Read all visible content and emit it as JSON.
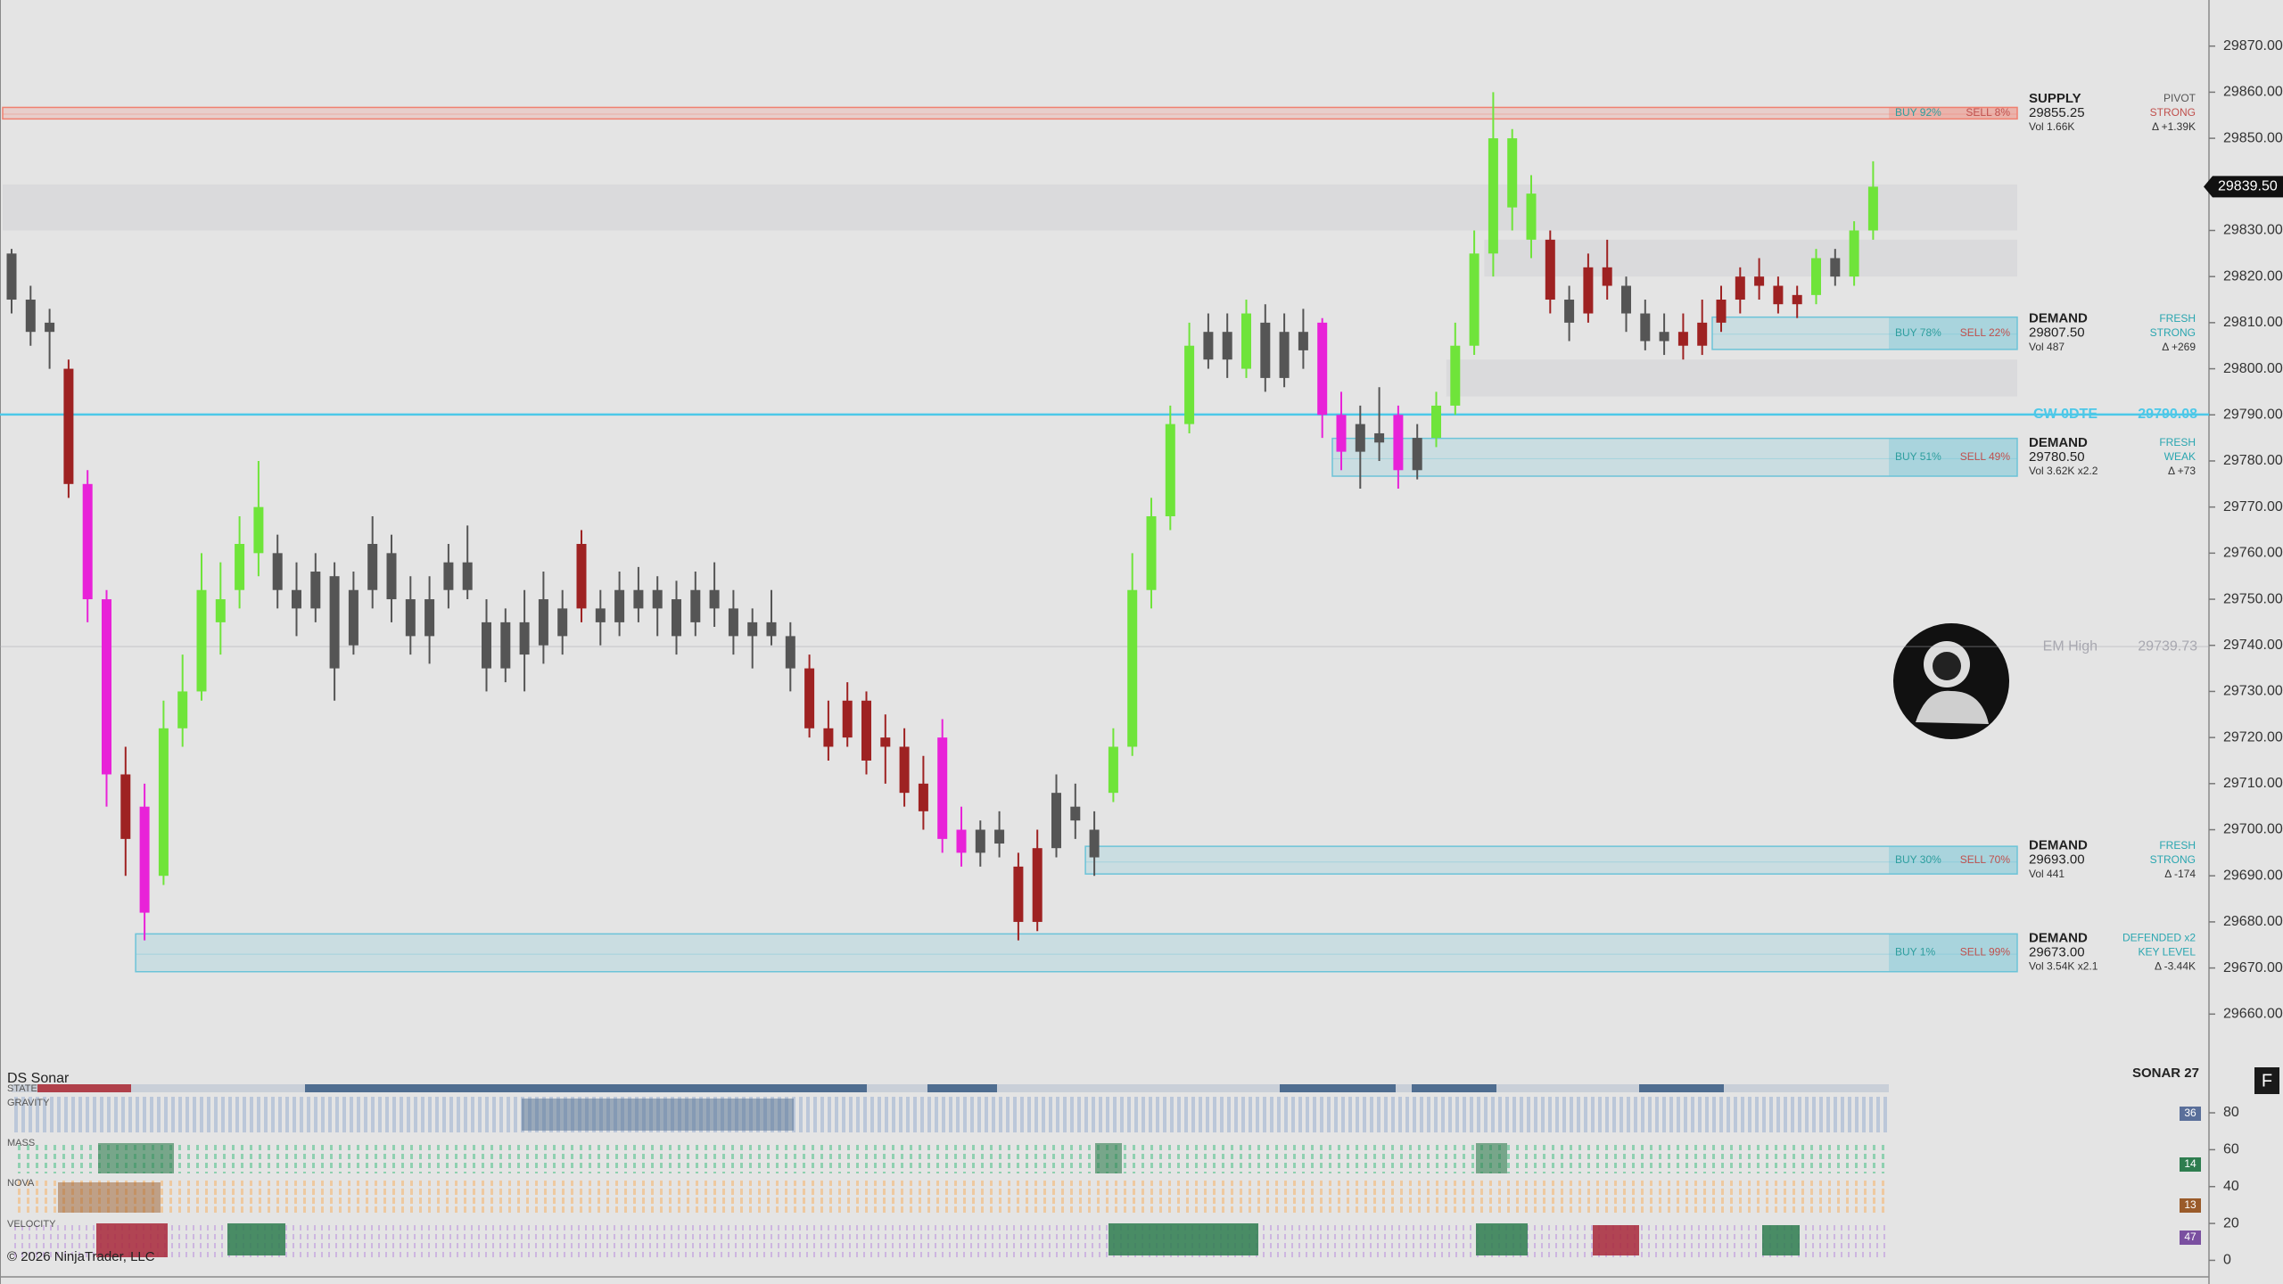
{
  "chart_data": {
    "type": "candlestick",
    "ylim": [
      29650,
      29880
    ],
    "yticks": [
      {
        "value": 29660,
        "label": "29660.00"
      },
      {
        "value": 29670,
        "label": "29670.00"
      },
      {
        "value": 29680,
        "label": "29680.00"
      },
      {
        "value": 29690,
        "label": "29690.00"
      },
      {
        "value": 29700,
        "label": "29700.00"
      },
      {
        "value": 29710,
        "label": "29710.00"
      },
      {
        "value": 29720,
        "label": "29720.00"
      },
      {
        "value": 29730,
        "label": "29730.00"
      },
      {
        "value": 29740,
        "label": "29740.00"
      },
      {
        "value": 29750,
        "label": "29750.00"
      },
      {
        "value": 29760,
        "label": "29760.00"
      },
      {
        "value": 29770,
        "label": "29770.00"
      },
      {
        "value": 29780,
        "label": "29780.00"
      },
      {
        "value": 29790,
        "label": "29790.00"
      },
      {
        "value": 29800,
        "label": "29800.00"
      },
      {
        "value": 29810,
        "label": "29810.00"
      },
      {
        "value": 29820,
        "label": "29820.00"
      },
      {
        "value": 29830,
        "label": "29830.00"
      },
      {
        "value": 29840,
        "label": "29840.00"
      },
      {
        "value": 29850,
        "label": "29850.00"
      },
      {
        "value": 29860,
        "label": "29860.00"
      },
      {
        "value": 29870,
        "label": "29870.00"
      }
    ],
    "candles": [
      [
        29825,
        29826,
        29812,
        29815
      ],
      [
        29815,
        29818,
        29805,
        29808
      ],
      [
        29808,
        29813,
        29800,
        29810
      ],
      [
        29800,
        29802,
        29772,
        29775
      ],
      [
        29775,
        29778,
        29745,
        29750
      ],
      [
        29750,
        29752,
        29705,
        29712
      ],
      [
        29712,
        29718,
        29690,
        29698
      ],
      [
        29705,
        29710,
        29676,
        29682
      ],
      [
        29690,
        29728,
        29688,
        29722
      ],
      [
        29722,
        29738,
        29718,
        29730
      ],
      [
        29730,
        29760,
        29728,
        29752
      ],
      [
        29745,
        29758,
        29738,
        29750
      ],
      [
        29752,
        29768,
        29748,
        29762
      ],
      [
        29760,
        29780,
        29755,
        29770
      ],
      [
        29760,
        29764,
        29748,
        29752
      ],
      [
        29752,
        29758,
        29742,
        29748
      ],
      [
        29748,
        29760,
        29745,
        29756
      ],
      [
        29755,
        29758,
        29728,
        29735
      ],
      [
        29740,
        29756,
        29738,
        29752
      ],
      [
        29752,
        29768,
        29748,
        29762
      ],
      [
        29760,
        29764,
        29745,
        29750
      ],
      [
        29750,
        29755,
        29738,
        29742
      ],
      [
        29742,
        29755,
        29736,
        29750
      ],
      [
        29752,
        29762,
        29748,
        29758
      ],
      [
        29758,
        29766,
        29750,
        29752
      ],
      [
        29745,
        29750,
        29730,
        29735
      ],
      [
        29735,
        29748,
        29732,
        29745
      ],
      [
        29745,
        29752,
        29730,
        29738
      ],
      [
        29740,
        29756,
        29736,
        29750
      ],
      [
        29748,
        29752,
        29738,
        29742
      ],
      [
        29762,
        29765,
        29745,
        29748
      ],
      [
        29748,
        29752,
        29740,
        29745
      ],
      [
        29745,
        29756,
        29742,
        29752
      ],
      [
        29752,
        29757,
        29745,
        29748
      ],
      [
        29748,
        29755,
        29742,
        29752
      ],
      [
        29750,
        29754,
        29738,
        29742
      ],
      [
        29745,
        29756,
        29742,
        29752
      ],
      [
        29752,
        29758,
        29744,
        29748
      ],
      [
        29748,
        29752,
        29738,
        29742
      ],
      [
        29742,
        29748,
        29735,
        29745
      ],
      [
        29745,
        29752,
        29740,
        29742
      ],
      [
        29742,
        29745,
        29730,
        29735
      ],
      [
        29735,
        29738,
        29720,
        29722
      ],
      [
        29722,
        29728,
        29715,
        29718
      ],
      [
        29720,
        29732,
        29718,
        29728
      ],
      [
        29728,
        29730,
        29712,
        29715
      ],
      [
        29718,
        29725,
        29710,
        29720
      ],
      [
        29718,
        29722,
        29705,
        29708
      ],
      [
        29710,
        29716,
        29700,
        29704
      ],
      [
        29720,
        29724,
        29695,
        29698
      ],
      [
        29700,
        29705,
        29692,
        29695
      ],
      [
        29695,
        29702,
        29692,
        29700
      ],
      [
        29700,
        29704,
        29694,
        29697
      ],
      [
        29692,
        29695,
        29676,
        29680
      ],
      [
        29680,
        29700,
        29678,
        29696
      ],
      [
        29696,
        29712,
        29694,
        29708
      ],
      [
        29705,
        29710,
        29698,
        29702
      ],
      [
        29700,
        29704,
        29690,
        29694
      ],
      [
        29708,
        29722,
        29706,
        29718
      ],
      [
        29718,
        29760,
        29716,
        29752
      ],
      [
        29752,
        29772,
        29748,
        29768
      ],
      [
        29768,
        29792,
        29765,
        29788
      ],
      [
        29788,
        29810,
        29786,
        29805
      ],
      [
        29808,
        29812,
        29800,
        29802
      ],
      [
        29802,
        29812,
        29798,
        29808
      ],
      [
        29800,
        29815,
        29798,
        29812
      ],
      [
        29810,
        29814,
        29795,
        29798
      ],
      [
        29798,
        29812,
        29796,
        29808
      ],
      [
        29808,
        29813,
        29800,
        29804
      ],
      [
        29810,
        29811,
        29785,
        29790
      ],
      [
        29790,
        29795,
        29778,
        29782
      ],
      [
        29782,
        29792,
        29774,
        29788
      ],
      [
        29786,
        29796,
        29780,
        29784
      ],
      [
        29790,
        29792,
        29774,
        29778
      ],
      [
        29778,
        29788,
        29776,
        29785
      ],
      [
        29785,
        29795,
        29783,
        29792
      ],
      [
        29792,
        29810,
        29790,
        29805
      ],
      [
        29805,
        29830,
        29803,
        29825
      ],
      [
        29825,
        29860,
        29820,
        29850
      ],
      [
        29850,
        29852,
        29830,
        29835
      ],
      [
        29838,
        29842,
        29824,
        29828
      ],
      [
        29828,
        29830,
        29812,
        29815
      ],
      [
        29815,
        29818,
        29806,
        29810
      ],
      [
        29812,
        29825,
        29810,
        29822
      ],
      [
        29822,
        29828,
        29815,
        29818
      ],
      [
        29818,
        29820,
        29808,
        29812
      ],
      [
        29812,
        29815,
        29804,
        29806
      ],
      [
        29806,
        29812,
        29803,
        29808
      ],
      [
        29808,
        29812,
        29802,
        29805
      ],
      [
        29805,
        29815,
        29803,
        29810
      ],
      [
        29810,
        29818,
        29808,
        29815
      ],
      [
        29815,
        29822,
        29812,
        29820
      ],
      [
        29820,
        29824,
        29815,
        29818
      ],
      [
        29818,
        29820,
        29812,
        29814
      ],
      [
        29814,
        29818,
        29811,
        29816
      ],
      [
        29816,
        29826,
        29814,
        29824
      ],
      [
        29824,
        29826,
        29818,
        29820
      ],
      [
        29820,
        29832,
        29818,
        29830
      ],
      [
        29830,
        29845,
        29828,
        29839.5
      ]
    ],
    "candle_colors": [
      "#555555",
      "#555555",
      "#555555",
      "#9e2222",
      "#e822d8",
      "#e822d8",
      "#9e2222",
      "#e822d8",
      "#6fe43a",
      "#6fe43a",
      "#6fe43a",
      "#6fe43a",
      "#6fe43a",
      "#6fe43a",
      "#555555",
      "#555555",
      "#555555",
      "#555555",
      "#555555",
      "#555555",
      "#555555",
      "#555555",
      "#555555",
      "#555555",
      "#555555",
      "#555555",
      "#555555",
      "#555555",
      "#555555",
      "#555555",
      "#9e2222",
      "#555555",
      "#555555",
      "#555555",
      "#555555",
      "#555555",
      "#555555",
      "#555555",
      "#555555",
      "#555555",
      "#555555",
      "#555555",
      "#9e2222",
      "#9e2222",
      "#9e2222",
      "#9e2222",
      "#9e2222",
      "#9e2222",
      "#9e2222",
      "#e822d8",
      "#e822d8",
      "#555555",
      "#555555",
      "#9e2222",
      "#9e2222",
      "#555555",
      "#555555",
      "#555555",
      "#6fe43a",
      "#6fe43a",
      "#6fe43a",
      "#6fe43a",
      "#6fe43a",
      "#555555",
      "#555555",
      "#6fe43a",
      "#555555",
      "#555555",
      "#555555",
      "#e822d8",
      "#e822d8",
      "#555555",
      "#555555",
      "#e822d8",
      "#555555",
      "#6fe43a",
      "#6fe43a",
      "#6fe43a",
      "#6fe43a",
      "#6fe43a",
      "#6fe43a",
      "#9e2222",
      "#555555",
      "#9e2222",
      "#9e2222",
      "#555555",
      "#555555",
      "#555555",
      "#9e2222",
      "#9e2222",
      "#9e2222",
      "#9e2222",
      "#9e2222",
      "#9e2222",
      "#9e2222",
      "#6fe43a",
      "#555555",
      "#6fe43a",
      "#6fe43a"
    ],
    "faded_zones": [
      {
        "low": 29830,
        "high": 29840,
        "start": 0
      },
      {
        "low": 29820,
        "high": 29828,
        "start": 78
      },
      {
        "low": 29794,
        "high": 29802,
        "start": 76
      }
    ],
    "zones": [
      {
        "kind": "SUPPLY",
        "price": 29855.25,
        "low": 29854.2,
        "high": 29856.7,
        "start": 0,
        "color": "#f08070",
        "buy": "BUY 92%",
        "sell": "SELL 8%",
        "vol": "Vol 1.66K",
        "status": [
          "PIVOT",
          "STRONG"
        ],
        "status_color": "#c0504d",
        "delta": "Δ +1.39K"
      },
      {
        "kind": "DEMAND",
        "price": {
          "value": 29807.5,
          "label": "29807.50"
        },
        "low": 29804.2,
        "high": 29811.2,
        "start": 90,
        "color": "#6cc3d8",
        "buy": "BUY 78%",
        "sell": "SELL 22%",
        "vol": "Vol 487",
        "status": [
          "FRESH",
          "STRONG"
        ],
        "status_color": "#2aa6b0",
        "delta": "Δ +269"
      },
      {
        "kind": "DEMAND",
        "price": {
          "value": 29780.5,
          "label": "29780.50"
        },
        "low": 29776.7,
        "high": 29784.9,
        "start": 70,
        "color": "#6cc3d8",
        "buy": "BUY 51%",
        "sell": "SELL 49%",
        "vol": "Vol 3.62K x2.2",
        "status": [
          "FRESH",
          "WEAK"
        ],
        "status_color": "#2aa6b0",
        "delta": "Δ +73"
      },
      {
        "kind": "DEMAND",
        "price": {
          "value": 29693,
          "label": "29693.00"
        },
        "low": 29690.4,
        "high": 29696.4,
        "start": 57,
        "color": "#6cc3d8",
        "buy": "BUY 30%",
        "sell": "SELL 70%",
        "vol": "Vol 441",
        "status": [
          "FRESH",
          "STRONG"
        ],
        "status_color": "#2aa6b0",
        "delta": "Δ -174"
      },
      {
        "kind": "DEMAND",
        "price": {
          "value": 29673,
          "label": "29673.00"
        },
        "low": 29669.2,
        "high": 29677.4,
        "start": 7,
        "color": "#6cc3d8",
        "buy": "BUY 1%",
        "sell": "SELL 99%",
        "vol": "Vol 3.54K x2.1",
        "status": [
          "DEFENDED x2",
          "KEY LEVEL"
        ],
        "status_color": "#2aa6b0",
        "delta": "Δ -3.44K"
      }
    ],
    "levels": [
      {
        "label": "CW 0DTE",
        "value": 29790.08,
        "color": "#4cc8e8"
      },
      {
        "label": "EM High",
        "value": 29739.73,
        "color": "#a8a8b0"
      }
    ],
    "last_price": {
      "value": 29839.5,
      "label": "29839.50"
    },
    "indicator": {
      "title": "DS Sonar",
      "name": "SONAR 27",
      "rows": [
        "STATE",
        "GRAVITY",
        "MASS",
        "NOVA",
        "VELOCITY"
      ],
      "ylim": [
        -8,
        95
      ],
      "yticks": [
        0,
        20,
        40,
        60,
        80
      ],
      "readings": [
        36,
        14,
        13,
        47
      ],
      "reading_colors": [
        "#5a6f9a",
        "#2e7d4f",
        "#9a5b2a",
        "#7a4fa0"
      ]
    },
    "button": "F",
    "copyright": "© 2026 NinjaTrader, LLC"
  }
}
